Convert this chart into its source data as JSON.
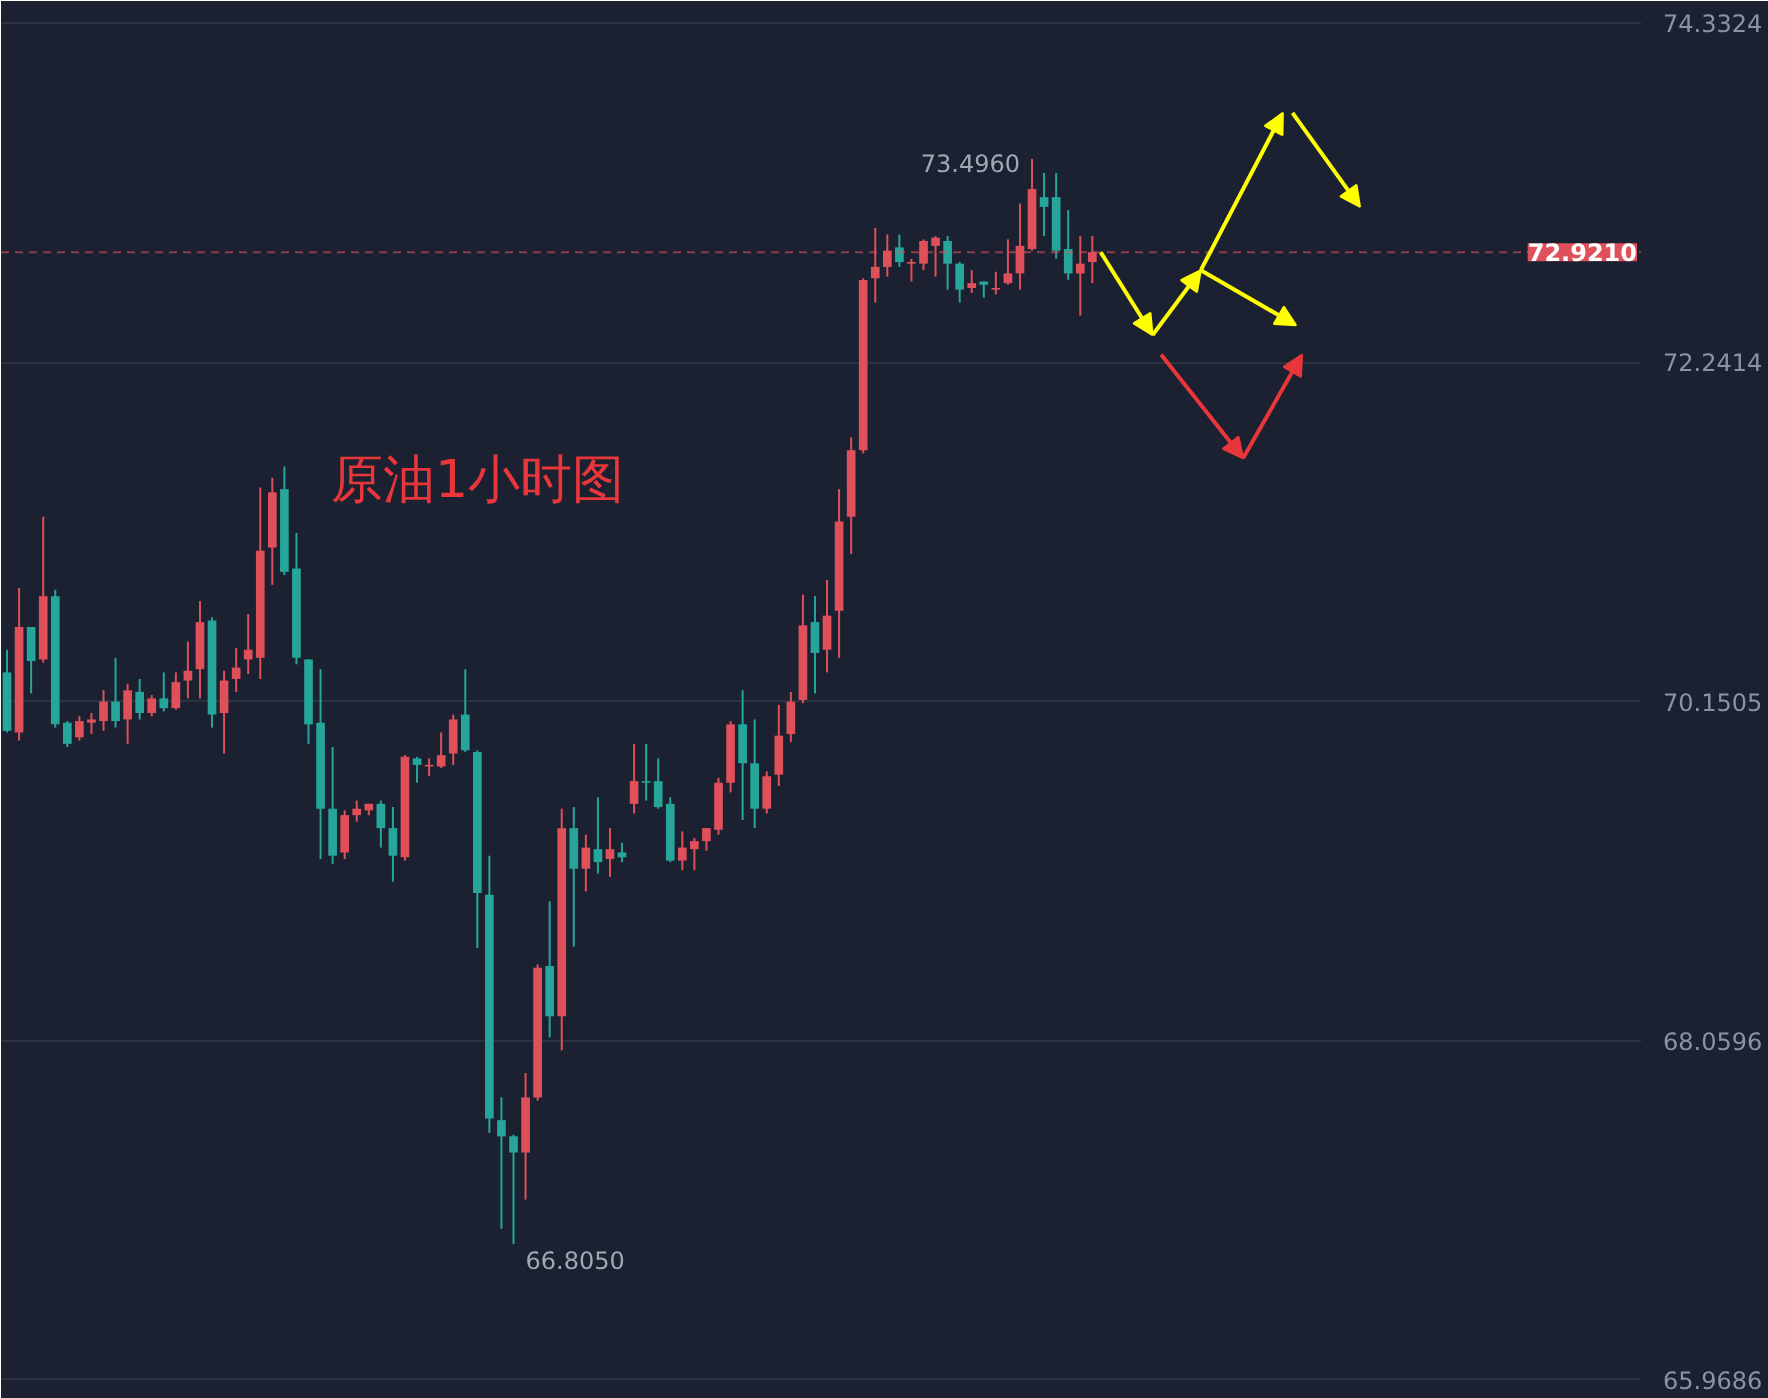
{
  "chart_data": {
    "type": "candlestick",
    "categories": [
      null,
      null,
      null,
      null,
      null,
      null,
      null,
      null,
      null,
      null,
      null,
      null,
      null,
      null,
      null,
      null,
      null,
      null,
      null,
      null,
      null,
      null,
      null,
      null,
      null,
      null,
      null,
      null,
      null,
      null,
      null,
      null,
      null,
      null,
      null,
      null,
      null,
      null,
      null,
      null,
      null,
      null,
      null,
      null,
      null,
      null,
      null,
      null,
      null,
      null,
      null,
      null,
      null,
      null,
      null,
      null,
      null,
      null,
      null,
      null,
      null,
      null,
      null,
      null,
      null,
      null,
      null,
      null,
      null,
      null,
      null,
      null,
      null,
      null,
      null,
      null,
      null,
      null,
      null,
      null,
      null,
      null,
      null,
      null,
      null,
      null,
      null,
      null,
      null,
      null,
      null,
      null,
      null,
      null,
      null,
      null,
      null,
      null,
      null,
      null,
      null,
      null,
      null,
      null,
      null,
      null,
      null,
      null,
      null,
      null,
      null,
      null,
      null,
      null,
      null,
      null,
      null,
      null,
      null,
      null,
      null,
      null,
      null,
      null,
      null,
      null,
      null,
      null,
      null,
      null,
      null,
      null,
      null,
      null,
      null,
      null
    ],
    "ohlc": [
      [
        70.33,
        70.47,
        69.96,
        69.97
      ],
      [
        69.96,
        70.85,
        69.91,
        70.61
      ],
      [
        70.61,
        70.61,
        70.2,
        70.4
      ],
      [
        70.41,
        71.29,
        70.39,
        70.8
      ],
      [
        70.8,
        70.84,
        69.99,
        70.01
      ],
      [
        70.02,
        70.03,
        69.87,
        69.89
      ],
      [
        69.93,
        70.06,
        69.91,
        70.03
      ],
      [
        70.02,
        70.08,
        69.95,
        70.04
      ],
      [
        70.03,
        70.22,
        69.97,
        70.15
      ],
      [
        70.15,
        70.42,
        69.99,
        70.03
      ],
      [
        70.04,
        70.26,
        69.89,
        70.22
      ],
      [
        70.21,
        70.29,
        70.04,
        70.08
      ],
      [
        70.08,
        70.19,
        70.06,
        70.17
      ],
      [
        70.17,
        70.33,
        70.09,
        70.11
      ],
      [
        70.11,
        70.33,
        70.1,
        70.27
      ],
      [
        70.28,
        70.52,
        70.17,
        70.34
      ],
      [
        70.35,
        70.77,
        70.17,
        70.64
      ],
      [
        70.65,
        70.67,
        69.99,
        70.07
      ],
      [
        70.08,
        70.34,
        69.83,
        70.28
      ],
      [
        70.29,
        70.48,
        70.21,
        70.36
      ],
      [
        70.41,
        70.69,
        70.32,
        70.47
      ],
      [
        70.42,
        71.47,
        70.29,
        71.08
      ],
      [
        71.1,
        71.53,
        70.87,
        71.44
      ],
      [
        71.46,
        71.6,
        70.93,
        70.95
      ],
      [
        70.97,
        71.19,
        70.38,
        70.42
      ],
      [
        70.41,
        70.41,
        69.89,
        70.01
      ],
      [
        70.02,
        70.35,
        69.18,
        69.49
      ],
      [
        69.49,
        69.87,
        69.15,
        69.2
      ],
      [
        69.22,
        69.48,
        69.18,
        69.45
      ],
      [
        69.45,
        69.54,
        69.41,
        69.49
      ],
      [
        69.48,
        69.52,
        69.45,
        69.52
      ],
      [
        69.52,
        69.54,
        69.25,
        69.37
      ],
      [
        69.37,
        69.5,
        69.04,
        69.2
      ],
      [
        69.19,
        69.82,
        69.17,
        69.81
      ],
      [
        69.8,
        69.81,
        69.65,
        69.76
      ],
      [
        69.75,
        69.8,
        69.69,
        69.76
      ],
      [
        69.75,
        69.96,
        69.74,
        69.82
      ],
      [
        69.83,
        70.07,
        69.76,
        70.04
      ],
      [
        70.07,
        70.35,
        69.84,
        69.85
      ],
      [
        69.84,
        69.85,
        68.63,
        68.97
      ],
      [
        68.96,
        69.2,
        67.49,
        67.58
      ],
      [
        67.57,
        67.71,
        66.9,
        67.47
      ],
      [
        67.47,
        67.48,
        66.805,
        67.37
      ],
      [
        67.37,
        67.86,
        67.08,
        67.71
      ],
      [
        67.71,
        68.53,
        67.69,
        68.51
      ],
      [
        68.52,
        68.92,
        68.08,
        68.21
      ],
      [
        68.21,
        69.49,
        68.0,
        69.37
      ],
      [
        69.37,
        69.5,
        68.64,
        69.12
      ],
      [
        69.12,
        69.33,
        68.98,
        69.25
      ],
      [
        69.24,
        69.56,
        69.09,
        69.16
      ],
      [
        69.18,
        69.37,
        69.07,
        69.24
      ],
      [
        69.22,
        69.28,
        69.16,
        69.19
      ],
      [
        69.52,
        69.89,
        69.46,
        69.66
      ],
      [
        69.66,
        69.89,
        69.54,
        69.65
      ],
      [
        69.66,
        69.8,
        69.49,
        69.5
      ],
      [
        69.52,
        69.56,
        69.16,
        69.17
      ],
      [
        69.17,
        69.35,
        69.11,
        69.25
      ],
      [
        69.24,
        69.31,
        69.11,
        69.29
      ],
      [
        69.29,
        69.37,
        69.23,
        69.37
      ],
      [
        69.36,
        69.68,
        69.33,
        69.65
      ],
      [
        69.65,
        70.03,
        69.59,
        70.01
      ],
      [
        70.01,
        70.22,
        69.42,
        69.77
      ],
      [
        69.77,
        70.04,
        69.37,
        69.49
      ],
      [
        69.49,
        69.72,
        69.46,
        69.69
      ],
      [
        69.7,
        70.13,
        69.63,
        69.94
      ],
      [
        69.95,
        70.21,
        69.9,
        70.15
      ],
      [
        70.16,
        70.81,
        70.14,
        70.62
      ],
      [
        70.64,
        70.8,
        70.2,
        70.45
      ],
      [
        70.47,
        70.9,
        70.33,
        70.68
      ],
      [
        70.71,
        71.46,
        70.42,
        71.26
      ],
      [
        71.29,
        71.78,
        71.06,
        71.7
      ],
      [
        71.7,
        72.76,
        71.68,
        72.75
      ],
      [
        72.76,
        73.07,
        72.61,
        72.83
      ],
      [
        72.83,
        73.03,
        72.77,
        72.93
      ],
      [
        72.95,
        73.03,
        72.83,
        72.86
      ],
      [
        72.85,
        72.88,
        72.74,
        72.86
      ],
      [
        72.85,
        73.0,
        72.81,
        72.99
      ],
      [
        72.96,
        73.02,
        72.77,
        73.01
      ],
      [
        72.99,
        73.02,
        72.69,
        72.85
      ],
      [
        72.85,
        72.86,
        72.61,
        72.69
      ],
      [
        72.7,
        72.81,
        72.67,
        72.73
      ],
      [
        72.74,
        72.74,
        72.64,
        72.72
      ],
      [
        72.69,
        72.8,
        72.66,
        72.7
      ],
      [
        72.73,
        73.0,
        72.72,
        72.79
      ],
      [
        72.79,
        73.22,
        72.69,
        72.96
      ],
      [
        72.94,
        73.496,
        72.93,
        73.31
      ],
      [
        73.26,
        73.41,
        73.02,
        73.2
      ],
      [
        73.26,
        73.41,
        72.88,
        72.93
      ],
      [
        72.94,
        73.18,
        72.75,
        72.79
      ],
      [
        72.79,
        73.02,
        72.53,
        72.85
      ],
      [
        72.86,
        73.02,
        72.73,
        72.921
      ],
      null,
      null,
      null,
      null,
      null,
      null,
      null,
      null,
      null,
      null,
      null,
      null,
      null,
      null,
      null,
      null,
      null,
      null,
      null,
      null,
      null,
      null,
      null,
      null,
      null,
      null,
      null,
      null,
      null,
      null,
      null,
      null,
      null,
      null,
      null,
      null,
      null,
      null,
      null,
      null,
      null,
      null,
      null,
      null,
      null
    ],
    "colors": [
      "#26a69a",
      "#e0505a",
      "#26a69a",
      "#e0505a",
      "#26a69a",
      "#26a69a",
      "#e0505a",
      "#e0505a",
      "#e0505a",
      "#26a69a",
      "#e0505a",
      "#26a69a",
      "#e0505a",
      "#26a69a",
      "#e0505a",
      "#e0505a",
      "#e0505a",
      "#26a69a",
      "#e0505a",
      "#e0505a",
      "#e0505a",
      "#e0505a",
      "#e0505a",
      "#26a69a",
      "#26a69a",
      "#26a69a",
      "#26a69a",
      "#26a69a",
      "#e0505a",
      "#e0505a",
      "#e0505a",
      "#26a69a",
      "#26a69a",
      "#e0505a",
      "#26a69a",
      "#e0505a",
      "#e0505a",
      "#e0505a",
      "#26a69a",
      "#26a69a",
      "#26a69a",
      "#26a69a",
      "#26a69a",
      "#e0505a",
      "#e0505a",
      "#26a69a",
      "#e0505a",
      "#26a69a",
      "#e0505a",
      "#26a69a",
      "#e0505a",
      "#26a69a",
      "#e0505a",
      "#26a69a",
      "#26a69a",
      "#26a69a",
      "#e0505a",
      "#e0505a",
      "#e0505a",
      "#e0505a",
      "#e0505a",
      "#26a69a",
      "#26a69a",
      "#e0505a",
      "#e0505a",
      "#e0505a",
      "#e0505a",
      "#26a69a",
      "#e0505a",
      "#e0505a",
      "#e0505a",
      "#e0505a",
      "#e0505a",
      "#e0505a",
      "#26a69a",
      "#e0505a",
      "#e0505a",
      "#e0505a",
      "#26a69a",
      "#26a69a",
      "#e0505a",
      "#26a69a",
      "#e0505a",
      "#e0505a",
      "#e0505a",
      "#e0505a",
      "#26a69a",
      "#26a69a",
      "#26a69a",
      "#e0505a",
      "#e0505a",
      null,
      null,
      null,
      null,
      null,
      null,
      null,
      null,
      null,
      null,
      null,
      null,
      null,
      null,
      null,
      null,
      null,
      null,
      null,
      null,
      null,
      null,
      null,
      null,
      null,
      null,
      null,
      null,
      null,
      null,
      null,
      null,
      null,
      null,
      null,
      null,
      null,
      null,
      null,
      null,
      null,
      null,
      null,
      null,
      null
    ],
    "ylim": [
      65.9,
      74.42
    ],
    "yticks": [
      65.9686,
      68.0596,
      70.1505,
      72.2414,
      74.3324
    ],
    "grid": "y",
    "tick_labels": "y",
    "ref_lines": [
      {
        "axis": "y",
        "value": 72.921,
        "label": "72.9210",
        "color": "#e0505a",
        "line_style": "dashed"
      }
    ],
    "annotations": [
      "原油1小时图",
      "73.4960",
      "66.8050"
    ]
  }
}
